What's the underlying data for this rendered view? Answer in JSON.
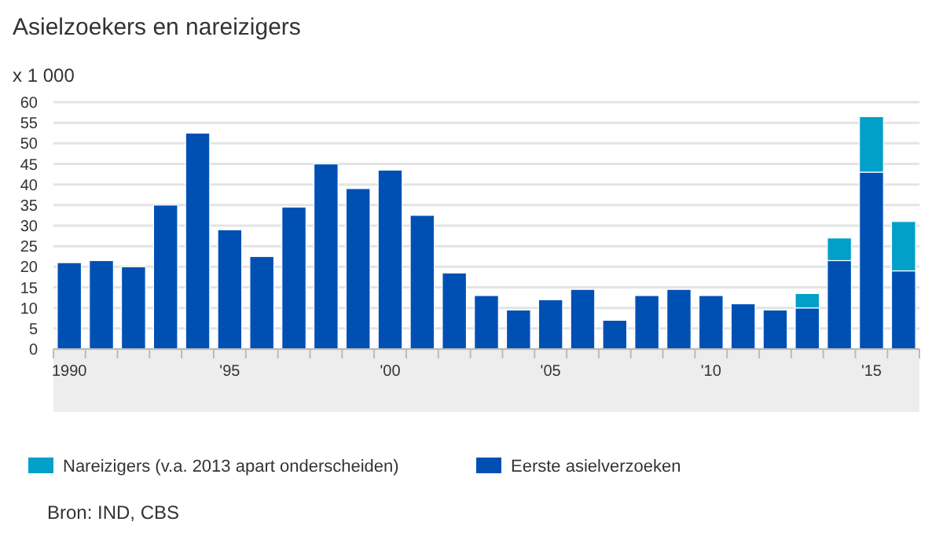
{
  "chart_data": {
    "type": "bar",
    "title": "Asielzoekers en nareizigers",
    "ylabel": "x 1 000",
    "stacked": true,
    "categories": [
      "1990",
      null,
      null,
      null,
      null,
      "'95",
      null,
      null,
      null,
      null,
      "'00",
      null,
      null,
      null,
      null,
      "'05",
      null,
      null,
      null,
      null,
      "'10",
      null,
      null,
      null,
      null,
      "'15",
      null
    ],
    "series": [
      {
        "name": "Eerste asielverzoeken",
        "color": "#0050b4",
        "values": [
          21,
          21.5,
          20,
          35,
          52.5,
          29,
          22.5,
          34.5,
          45,
          39,
          43.5,
          32.5,
          18.5,
          13,
          9.5,
          12,
          14.5,
          7,
          13,
          14.5,
          13,
          11,
          9.5,
          10,
          21.5,
          43,
          19
        ]
      },
      {
        "name": "Nareizigers (v.a. 2013 apart onderscheiden)",
        "color": "#00a0c8",
        "values": [
          null,
          null,
          null,
          null,
          null,
          null,
          null,
          null,
          null,
          null,
          null,
          null,
          null,
          null,
          null,
          null,
          null,
          null,
          null,
          null,
          null,
          null,
          null,
          3.5,
          5.5,
          13.5,
          12
        ]
      }
    ],
    "ylim": [
      0,
      60
    ],
    "yticks": [
      0,
      5,
      10,
      15,
      20,
      25,
      30,
      35,
      40,
      45,
      50,
      55,
      60
    ],
    "grid": "y",
    "legend": "bottom",
    "annotations": [
      "Bron: IND, CBS"
    ]
  }
}
